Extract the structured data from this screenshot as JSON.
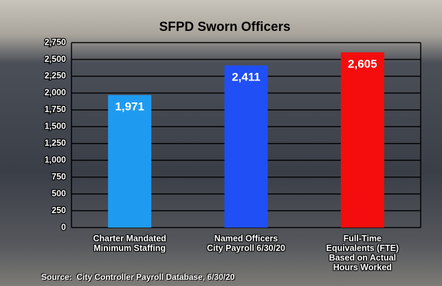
{
  "chart_data": {
    "type": "bar",
    "title": "SFPD Sworn Officers",
    "categories": [
      "Charter Mandated\nMinimum Staffing",
      "Named Officers\nCity Payroll 6/30/20",
      "Full-Time\nEquivalents (FTE)\nBased on Actual\nHours Worked"
    ],
    "values": [
      1971,
      2411,
      2605
    ],
    "value_labels": [
      "1,971",
      "2,411",
      "2,605"
    ],
    "colors": [
      "#1e9bf0",
      "#1f4ff5",
      "#f50d0d"
    ],
    "ylim": [
      0,
      2750
    ],
    "yticks": [
      0,
      250,
      500,
      750,
      {
        "value": 1000,
        "label": "1,000"
      },
      {
        "value": 1250,
        "label": "1,250"
      },
      {
        "value": 1500,
        "label": "1,500"
      },
      {
        "value": 1750,
        "label": "1,750"
      },
      {
        "value": 2000,
        "label": "2,000"
      },
      {
        "value": 2250,
        "label": "2,250"
      },
      {
        "value": 2500,
        "label": "2,500"
      },
      {
        "value": 2750,
        "label": "2,750"
      }
    ],
    "grid": true,
    "source": "Source:  City Controller Payroll Database, 6/30/20"
  }
}
